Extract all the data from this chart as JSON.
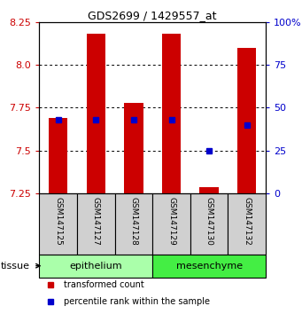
{
  "title": "GDS2699 / 1429557_at",
  "samples": [
    "GSM147125",
    "GSM147127",
    "GSM147128",
    "GSM147129",
    "GSM147130",
    "GSM147132"
  ],
  "red_values": [
    7.69,
    8.18,
    7.78,
    8.18,
    7.285,
    8.1
  ],
  "blue_percentiles": [
    43,
    43,
    43,
    43,
    25,
    40
  ],
  "y_min": 7.25,
  "y_max": 8.25,
  "y_ticks": [
    7.25,
    7.5,
    7.75,
    8.0,
    8.25
  ],
  "y2_ticks": [
    0,
    25,
    50,
    75,
    100
  ],
  "y2_tick_labels": [
    "0",
    "25",
    "50",
    "75",
    "100%"
  ],
  "groups": [
    {
      "label": "epithelium",
      "color": "#aaffaa",
      "n": 3
    },
    {
      "label": "mesenchyme",
      "color": "#44ee44",
      "n": 3
    }
  ],
  "bar_width": 0.5,
  "red_color": "#cc0000",
  "blue_color": "#0000cc",
  "tissue_label": "tissue",
  "legend_items": [
    {
      "label": "transformed count",
      "color": "#cc0000"
    },
    {
      "label": "percentile rank within the sample",
      "color": "#0000cc"
    }
  ],
  "left_tick_color": "#cc0000",
  "right_tick_color": "#0000cc",
  "bar_bottom": 7.25,
  "label_bg": "#d0d0d0"
}
